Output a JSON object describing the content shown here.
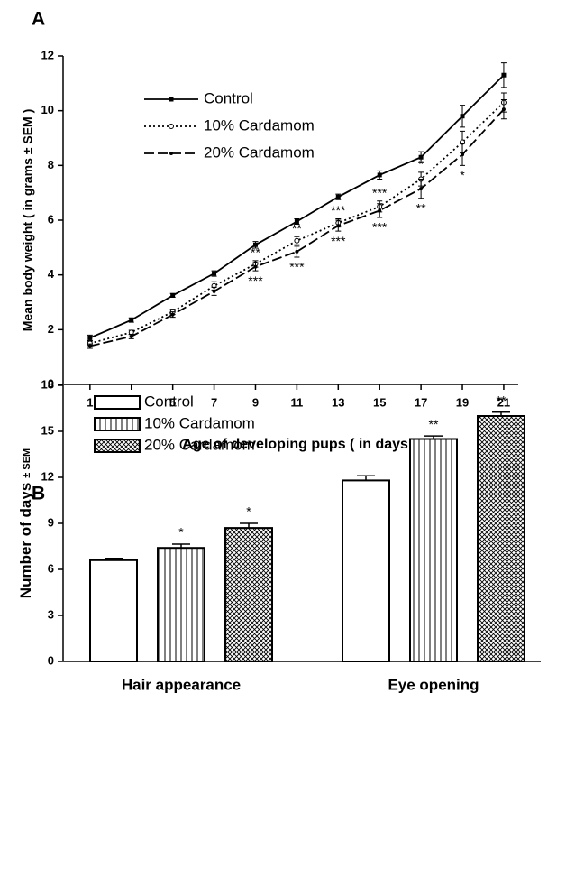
{
  "chart_data": [
    {
      "type": "line",
      "title": "A",
      "x_label": "Age of developing pups ( in days )",
      "y_label": "Mean body weight ( in grams ± SEM )",
      "x": [
        1,
        3,
        5,
        7,
        9,
        11,
        13,
        15,
        17,
        19,
        21
      ],
      "xlim": [
        -0.3,
        21.7
      ],
      "xticks": [
        1,
        3,
        5,
        7,
        9,
        11,
        13,
        15,
        17,
        19,
        21
      ],
      "ylim": [
        0,
        12
      ],
      "yticks": [
        0,
        2,
        4,
        6,
        8,
        10,
        12
      ],
      "series": [
        {
          "name": "Control",
          "color": "#000000",
          "line_style": "solid",
          "marker": "square",
          "values": [
            1.7,
            2.35,
            3.25,
            4.05,
            5.1,
            5.95,
            6.85,
            7.65,
            8.3,
            9.8,
            11.3
          ],
          "errors": [
            0.1,
            0.08,
            0.07,
            0.1,
            0.12,
            0.1,
            0.1,
            0.15,
            0.2,
            0.4,
            0.45
          ]
        },
        {
          "name": "10% Cardamom",
          "color": "#000000",
          "line_style": "dotted",
          "marker": "circle",
          "values": [
            1.5,
            1.9,
            2.65,
            3.6,
            4.4,
            5.25,
            5.9,
            6.5,
            7.5,
            8.85,
            10.3
          ],
          "errors": [
            0.08,
            0.08,
            0.1,
            0.15,
            0.12,
            0.15,
            0.15,
            0.2,
            0.25,
            0.4,
            0.35
          ],
          "significance": [
            null,
            null,
            null,
            null,
            "**",
            "**",
            "***",
            "***",
            "*",
            null,
            null
          ],
          "significance_side": "above"
        },
        {
          "name": "20% Cardamom",
          "color": "#000000",
          "line_style": "dashed",
          "marker": "dot",
          "values": [
            1.4,
            1.75,
            2.55,
            3.4,
            4.3,
            4.85,
            5.8,
            6.35,
            7.15,
            8.4,
            10.05
          ],
          "errors": [
            0.08,
            0.08,
            0.1,
            0.15,
            0.15,
            0.2,
            0.2,
            0.25,
            0.35,
            0.4,
            0.35
          ],
          "significance": [
            null,
            null,
            null,
            null,
            "***",
            "***",
            "***",
            "***",
            "**",
            "*",
            null
          ],
          "significance_side": "below"
        }
      ]
    },
    {
      "type": "bar",
      "title": "B",
      "y_label": "Number of days",
      "y_label_unit": "± SEM",
      "categories": [
        "Hair appearance",
        "Eye opening"
      ],
      "ylim": [
        0,
        18
      ],
      "yticks": [
        0,
        3,
        6,
        9,
        12,
        15,
        18
      ],
      "series": [
        {
          "name": "Control",
          "color": "#000000",
          "fill": "none",
          "values": [
            6.6,
            11.8
          ],
          "errors": [
            0.12,
            0.3
          ]
        },
        {
          "name": "10% Cardamom",
          "color": "#000000",
          "fill": "vertical-lines",
          "values": [
            7.4,
            14.5
          ],
          "errors": [
            0.25,
            0.2
          ],
          "significance": [
            "*",
            "**"
          ]
        },
        {
          "name": "20% Cardamom",
          "color": "#000000",
          "fill": "crosshatch",
          "values": [
            8.7,
            16.0
          ],
          "errors": [
            0.3,
            0.25
          ],
          "significance": [
            "*",
            "**"
          ]
        }
      ]
    }
  ]
}
